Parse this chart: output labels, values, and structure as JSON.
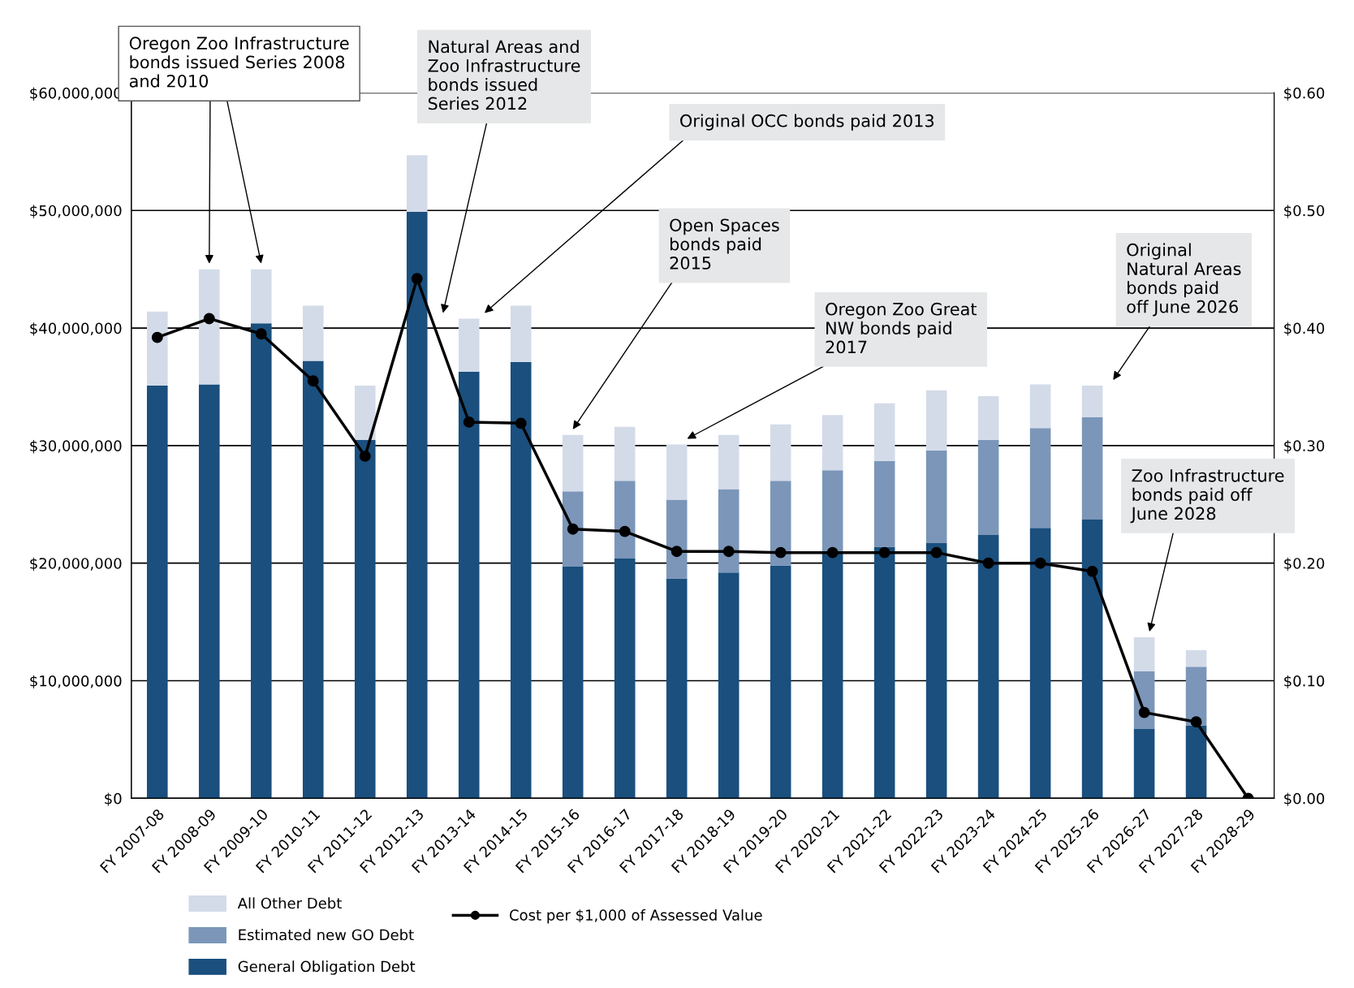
{
  "chart_data": {
    "type": "bar",
    "stacked": true,
    "categories": [
      "FY 2007-08",
      "FY 2008-09",
      "FY 2009-10",
      "FY 2010-11",
      "FY 2011-12",
      "FY 2012-13",
      "FY 2013-14",
      "FY 2014-15",
      "FY 2015-16",
      "FY 2016-17",
      "FY 2017-18",
      "FY 2018-19",
      "FY 2019-20",
      "FY 2020-21",
      "FY 2021-22",
      "FY 2022-23",
      "FY 2023-24",
      "FY 2024-25",
      "FY 2025-26",
      "FY 2026-27",
      "FY 2027-28",
      "FY 2028-29"
    ],
    "series": [
      {
        "name": "General Obligation Debt",
        "color": "#1a4f7e",
        "values": [
          35100000,
          35200000,
          40400000,
          37200000,
          30500000,
          49900000,
          36300000,
          37100000,
          19700000,
          20400000,
          18700000,
          19200000,
          19800000,
          20800000,
          21400000,
          21700000,
          22400000,
          23000000,
          23700000,
          5900000,
          6200000,
          0
        ]
      },
      {
        "name": "Estimated new GO Debt",
        "color": "#7b96b9",
        "values": [
          0,
          0,
          0,
          0,
          0,
          0,
          0,
          0,
          6400000,
          6600000,
          6700000,
          7100000,
          7200000,
          7100000,
          7300000,
          7900000,
          8100000,
          8500000,
          8700000,
          4900000,
          5000000,
          0
        ]
      },
      {
        "name": "All Other Debt",
        "color": "#d3dbe9",
        "values": [
          6300000,
          9800000,
          4600000,
          4700000,
          4600000,
          4800000,
          4500000,
          4800000,
          4800000,
          4600000,
          4700000,
          4600000,
          4800000,
          4700000,
          4900000,
          5100000,
          3700000,
          3700000,
          2700000,
          2900000,
          1400000,
          0
        ]
      },
      {
        "name": "Cost per $1,000 of Assessed Value",
        "type": "line",
        "axis": "y2",
        "color": "#000000",
        "marker": "circle",
        "line_style": "solid",
        "values": [
          0.392,
          0.408,
          0.395,
          0.355,
          0.291,
          0.442,
          0.32,
          0.319,
          0.229,
          0.227,
          0.21,
          0.21,
          0.209,
          0.209,
          0.209,
          0.209,
          0.2,
          0.2,
          0.193,
          0.073,
          0.065,
          0
        ]
      }
    ],
    "ylim": [
      0,
      60000000
    ],
    "yticks": [
      {
        "value": 0,
        "label": "$0"
      },
      {
        "value": 10000000,
        "label": "$10,000,000"
      },
      {
        "value": 20000000,
        "label": "$20,000,000"
      },
      {
        "value": 30000000,
        "label": "$30,000,000"
      },
      {
        "value": 40000000,
        "label": "$40,000,000"
      },
      {
        "value": 50000000,
        "label": "$50,000,000"
      },
      {
        "value": 60000000,
        "label": "$60,000,000"
      }
    ],
    "y2lim": [
      0,
      0.6
    ],
    "y2ticks": [
      {
        "value": 0,
        "label": "$0.00"
      },
      {
        "value": 0.1,
        "label": "$0.10"
      },
      {
        "value": 0.2,
        "label": "$0.20"
      },
      {
        "value": 0.3,
        "label": "$0.30"
      },
      {
        "value": 0.4,
        "label": "$0.40"
      },
      {
        "value": 0.5,
        "label": "$0.50"
      },
      {
        "value": 0.6,
        "label": "$0.60"
      }
    ],
    "grid": "y",
    "legend": "bottom",
    "annotations": [
      "Oregon Zoo Infrastructure\nbonds issued Series 2008\nand 2010",
      "Natural Areas and\nZoo Infrastructure\nbonds issued\nSeries 2012",
      "Original OCC bonds paid 2013",
      "Open Spaces\nbonds paid\n2015",
      "Oregon Zoo Great\nNW bonds paid\n2017",
      "Original\nNatural Areas\nbonds paid\noff June 2026",
      "Zoo Infrastructure\nbonds paid off\nJune 2028"
    ]
  }
}
